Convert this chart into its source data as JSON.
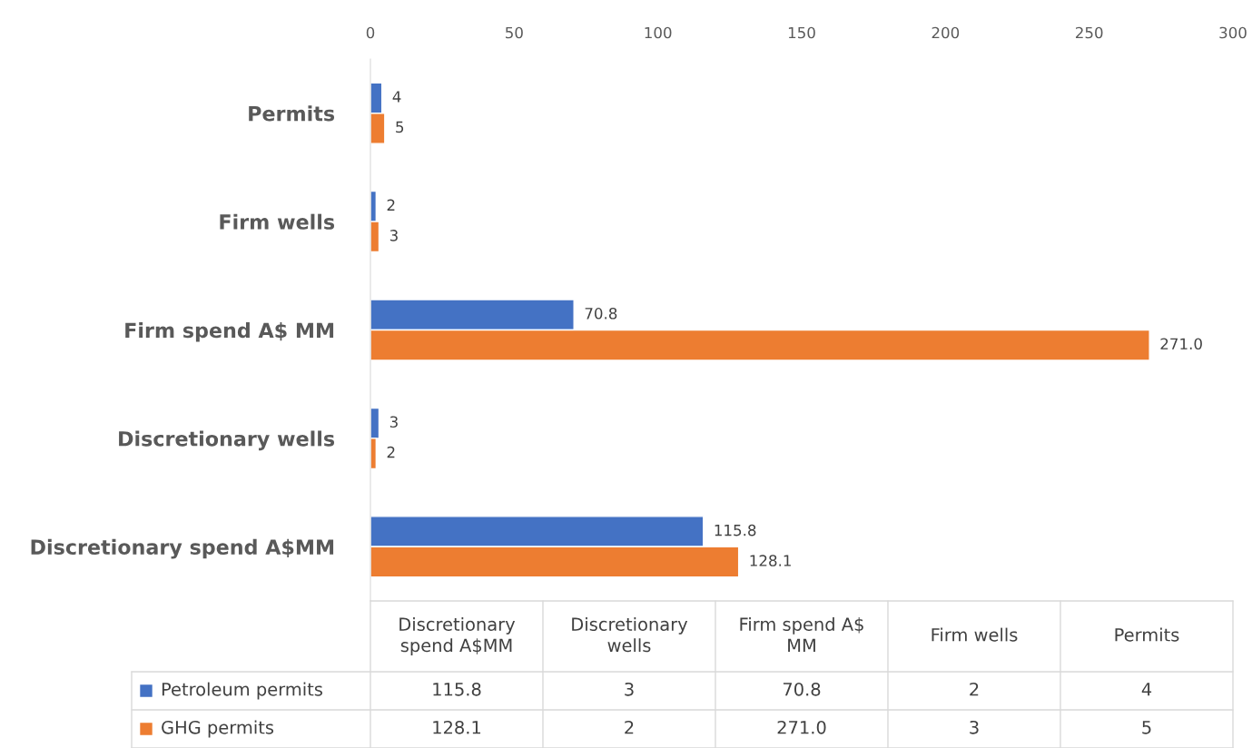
{
  "chart_data": {
    "type": "bar",
    "orientation": "horizontal",
    "categories": [
      "Permits",
      "Firm wells",
      "Firm spend A$ MM",
      "Discretionary wells",
      "Discretionary spend A$MM"
    ],
    "series": [
      {
        "name": "Petroleum permits",
        "color": "#4472c4",
        "values": [
          4,
          2,
          70.8,
          3,
          115.8
        ],
        "value_labels": [
          "4",
          "2",
          "70.8",
          "3",
          "115.8"
        ]
      },
      {
        "name": "GHG permits",
        "color": "#ed7d31",
        "values": [
          5,
          3,
          271.0,
          2,
          128.1
        ],
        "value_labels": [
          "5",
          "3",
          "271.0",
          "2",
          "128.1"
        ]
      }
    ],
    "xlim": [
      0,
      300
    ],
    "xticks": [
      0,
      50,
      100,
      150,
      200,
      250,
      300
    ],
    "grid": false,
    "legend": "bottom"
  }
}
